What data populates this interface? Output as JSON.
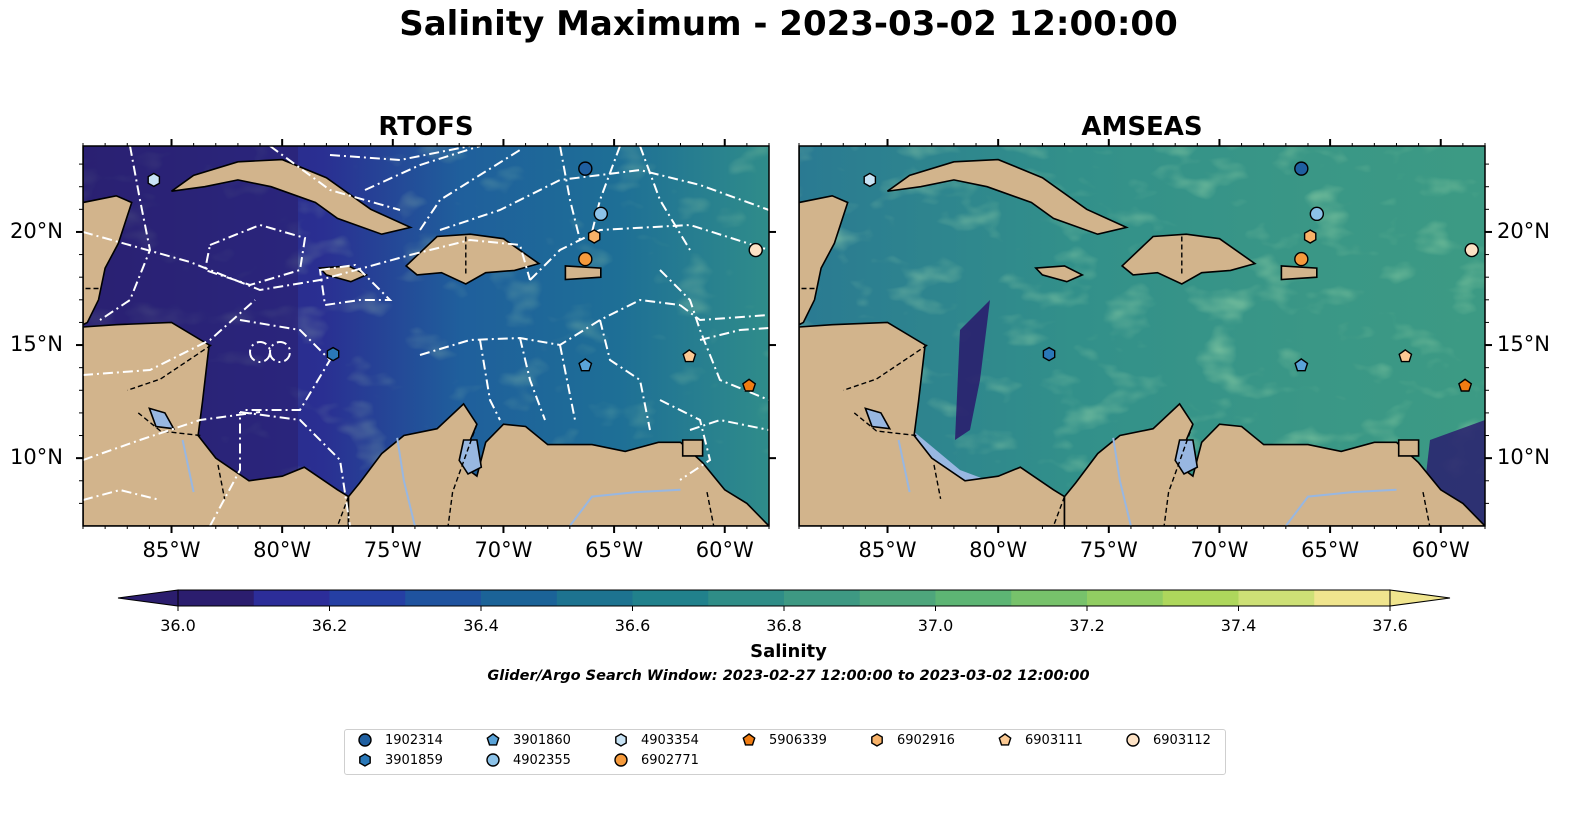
{
  "title": "Salinity Maximum - 2023-03-02 12:00:00",
  "panels": [
    {
      "title": "RTOFS"
    },
    {
      "title": "AMSEAS"
    }
  ],
  "axes": {
    "x_ticks": [
      "85°W",
      "80°W",
      "75°W",
      "70°W",
      "65°W",
      "60°W"
    ],
    "x_tick_lons": [
      -85,
      -80,
      -75,
      -70,
      -65,
      -60
    ],
    "y_ticks": [
      "20°N",
      "15°N",
      "10°N"
    ],
    "y_tick_lats": [
      20,
      15,
      10
    ],
    "lon_range": [
      -89,
      -58
    ],
    "lat_range": [
      7,
      23.8
    ]
  },
  "colorbar": {
    "label": "Salinity",
    "min": 36.0,
    "max": 37.6,
    "step": 0.1,
    "ticks": [
      "36.0",
      "36.2",
      "36.4",
      "36.6",
      "36.8",
      "37.0",
      "37.2",
      "37.4",
      "37.6"
    ],
    "colors": [
      "#2b1d6e",
      "#2c2d99",
      "#253fa3",
      "#1f539f",
      "#1b6398",
      "#1d7390",
      "#21818c",
      "#2f8d87",
      "#3e9983",
      "#4ea67c",
      "#5db574",
      "#77c26b",
      "#91cd62",
      "#aed75c",
      "#cde076",
      "#f0e58e"
    ]
  },
  "search_window": "Glider/Argo Search Window: 2023-02-27 12:00:00 to 2023-03-02 12:00:00",
  "floats": [
    {
      "id": "1902314",
      "marker": "circle",
      "color": "#1f5fa0",
      "lon": -66.3,
      "lat": 22.8
    },
    {
      "id": "3901859",
      "marker": "hexagon",
      "color": "#2a78b8",
      "lon": -77.7,
      "lat": 14.6
    },
    {
      "id": "3901860",
      "marker": "pentagon",
      "color": "#5aa3d8",
      "lon": -66.3,
      "lat": 14.1
    },
    {
      "id": "4902355",
      "marker": "circle",
      "color": "#8cc2e8",
      "lon": -65.6,
      "lat": 20.8
    },
    {
      "id": "4903354",
      "marker": "hexagon",
      "color": "#c8e3f5",
      "lon": -85.8,
      "lat": 22.3
    },
    {
      "id": "5906339",
      "marker": "pentagon",
      "color": "#f07c12",
      "lon": -58.9,
      "lat": 13.2
    },
    {
      "id": "6902771",
      "marker": "circle",
      "color": "#f59a3c",
      "lon": -66.3,
      "lat": 18.8
    },
    {
      "id": "6902916",
      "marker": "hexagon",
      "color": "#f8b268",
      "lon": -65.9,
      "lat": 19.8
    },
    {
      "id": "6903111",
      "marker": "pentagon",
      "color": "#fbc993",
      "lon": -61.6,
      "lat": 14.5
    },
    {
      "id": "6903112",
      "marker": "circle",
      "color": "#fde2c5",
      "lon": -58.6,
      "lat": 19.2
    }
  ],
  "colors": {
    "land": "#d2b48c",
    "lake": "#98b7e1",
    "ocean_shallow": "#3f9a84"
  }
}
